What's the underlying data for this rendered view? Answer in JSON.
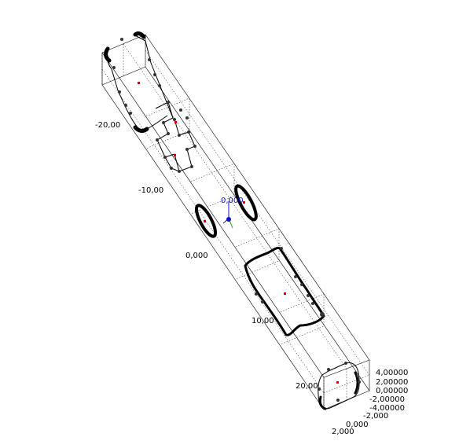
{
  "viewer": {
    "axis_labels_z": [
      "-20,00",
      "-10,00",
      "0,000",
      "10,00",
      "20,00"
    ],
    "axis_labels_y": [
      "4,00000",
      "2,00000",
      "0,00000",
      "-2,00000",
      "-4,00000"
    ],
    "axis_labels_x": [
      "-2,000",
      "0,000",
      "2,000"
    ],
    "origin_label": "0,000",
    "colors": {
      "centroid": "#e00000",
      "axis_x": "#1010c0",
      "axis_y": "#20b020",
      "points": "#333333"
    }
  }
}
